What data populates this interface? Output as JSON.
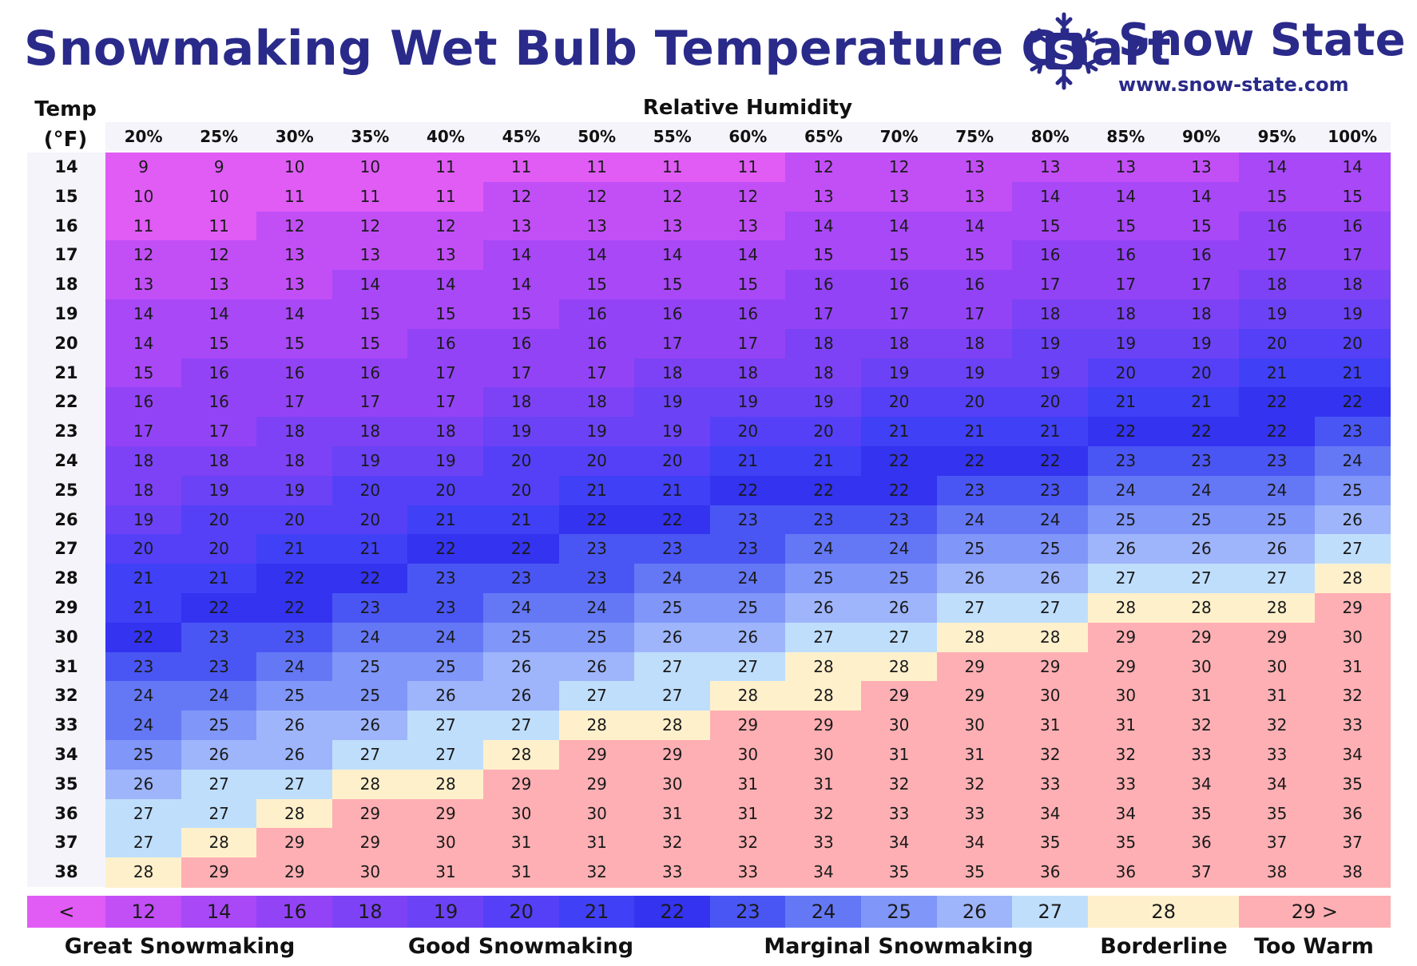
{
  "title": "Snowmaking Wet Bulb Temperature Chart",
  "brand": {
    "name": "Snow State",
    "url": "www.snow-state.com",
    "logo_icon": "snowflake-s-icon"
  },
  "chart_data": {
    "type": "table",
    "row_header": [
      "Temp",
      "(°F)"
    ],
    "column_header": "Relative Humidity",
    "columns": [
      "20%",
      "25%",
      "30%",
      "35%",
      "40%",
      "45%",
      "50%",
      "55%",
      "60%",
      "65%",
      "70%",
      "75%",
      "80%",
      "85%",
      "90%",
      "95%",
      "100%"
    ],
    "rows": [
      14,
      15,
      16,
      17,
      18,
      19,
      20,
      21,
      22,
      23,
      24,
      25,
      26,
      27,
      28,
      29,
      30,
      31,
      32,
      33,
      34,
      35,
      36,
      37,
      38
    ],
    "values": [
      [
        9,
        9,
        10,
        10,
        11,
        11,
        11,
        11,
        11,
        12,
        12,
        13,
        13,
        13,
        13,
        14,
        14
      ],
      [
        10,
        10,
        11,
        11,
        11,
        12,
        12,
        12,
        12,
        13,
        13,
        13,
        14,
        14,
        14,
        15,
        15
      ],
      [
        11,
        11,
        12,
        12,
        12,
        13,
        13,
        13,
        13,
        14,
        14,
        14,
        15,
        15,
        15,
        16,
        16
      ],
      [
        12,
        12,
        13,
        13,
        13,
        14,
        14,
        14,
        14,
        15,
        15,
        15,
        16,
        16,
        16,
        17,
        17
      ],
      [
        13,
        13,
        13,
        14,
        14,
        14,
        15,
        15,
        15,
        16,
        16,
        16,
        17,
        17,
        17,
        18,
        18
      ],
      [
        14,
        14,
        14,
        15,
        15,
        15,
        16,
        16,
        16,
        17,
        17,
        17,
        18,
        18,
        18,
        19,
        19
      ],
      [
        14,
        15,
        15,
        15,
        16,
        16,
        16,
        17,
        17,
        18,
        18,
        18,
        19,
        19,
        19,
        20,
        20
      ],
      [
        15,
        16,
        16,
        16,
        17,
        17,
        17,
        18,
        18,
        18,
        19,
        19,
        19,
        20,
        20,
        21,
        21
      ],
      [
        16,
        16,
        17,
        17,
        17,
        18,
        18,
        19,
        19,
        19,
        20,
        20,
        20,
        21,
        21,
        22,
        22
      ],
      [
        17,
        17,
        18,
        18,
        18,
        19,
        19,
        19,
        20,
        20,
        21,
        21,
        21,
        22,
        22,
        22,
        23
      ],
      [
        18,
        18,
        18,
        19,
        19,
        20,
        20,
        20,
        21,
        21,
        22,
        22,
        22,
        23,
        23,
        23,
        24
      ],
      [
        18,
        19,
        19,
        20,
        20,
        20,
        21,
        21,
        22,
        22,
        22,
        23,
        23,
        24,
        24,
        24,
        25
      ],
      [
        19,
        20,
        20,
        20,
        21,
        21,
        22,
        22,
        23,
        23,
        23,
        24,
        24,
        25,
        25,
        25,
        26
      ],
      [
        20,
        20,
        21,
        21,
        22,
        22,
        23,
        23,
        23,
        24,
        24,
        25,
        25,
        26,
        26,
        26,
        27
      ],
      [
        21,
        21,
        22,
        22,
        23,
        23,
        23,
        24,
        24,
        25,
        25,
        26,
        26,
        27,
        27,
        27,
        28
      ],
      [
        21,
        22,
        22,
        23,
        23,
        24,
        24,
        25,
        25,
        26,
        26,
        27,
        27,
        28,
        28,
        28,
        29
      ],
      [
        22,
        23,
        23,
        24,
        24,
        25,
        25,
        26,
        26,
        27,
        27,
        28,
        28,
        29,
        29,
        29,
        30
      ],
      [
        23,
        23,
        24,
        25,
        25,
        26,
        26,
        27,
        27,
        28,
        28,
        29,
        29,
        29,
        30,
        30,
        31
      ],
      [
        24,
        24,
        25,
        25,
        26,
        26,
        27,
        27,
        28,
        28,
        29,
        29,
        30,
        30,
        31,
        31,
        32
      ],
      [
        24,
        25,
        26,
        26,
        27,
        27,
        28,
        28,
        29,
        29,
        30,
        30,
        31,
        31,
        32,
        32,
        33
      ],
      [
        25,
        26,
        26,
        27,
        27,
        28,
        29,
        29,
        30,
        30,
        31,
        31,
        32,
        32,
        33,
        33,
        34
      ],
      [
        26,
        27,
        27,
        28,
        28,
        29,
        29,
        30,
        31,
        31,
        32,
        32,
        33,
        33,
        34,
        34,
        35
      ],
      [
        27,
        27,
        28,
        29,
        29,
        30,
        30,
        31,
        31,
        32,
        33,
        33,
        34,
        34,
        35,
        35,
        36
      ],
      [
        27,
        28,
        29,
        29,
        30,
        31,
        31,
        32,
        32,
        33,
        34,
        34,
        35,
        35,
        36,
        37,
        37
      ],
      [
        28,
        29,
        29,
        30,
        31,
        31,
        32,
        33,
        33,
        34,
        35,
        35,
        36,
        36,
        37,
        38,
        38
      ]
    ],
    "color_scale": [
      {
        "label": "<",
        "color": "#e05cf5"
      },
      {
        "label": "12",
        "color": "#c24ff6"
      },
      {
        "label": "14",
        "color": "#a848f6"
      },
      {
        "label": "16",
        "color": "#9343f6"
      },
      {
        "label": "18",
        "color": "#7d42f5"
      },
      {
        "label": "19",
        "color": "#6b42f6"
      },
      {
        "label": "20",
        "color": "#5540f7"
      },
      {
        "label": "21",
        "color": "#4040f6"
      },
      {
        "label": "22",
        "color": "#3333f0"
      },
      {
        "label": "23",
        "color": "#4a56f3"
      },
      {
        "label": "24",
        "color": "#6478f6"
      },
      {
        "label": "25",
        "color": "#8096f8"
      },
      {
        "label": "26",
        "color": "#9eb5fb"
      },
      {
        "label": "27",
        "color": "#bfdefc"
      },
      {
        "label": "28",
        "color": "#fff0cc"
      },
      {
        "label": "29 >",
        "color": "#feafb3"
      }
    ],
    "categories": [
      {
        "label": "Great Snowmaking"
      },
      {
        "label": "Good Snowmaking"
      },
      {
        "label": "Marginal Snowmaking"
      },
      {
        "label": "Borderline"
      },
      {
        "label": "Too Warm"
      }
    ]
  }
}
